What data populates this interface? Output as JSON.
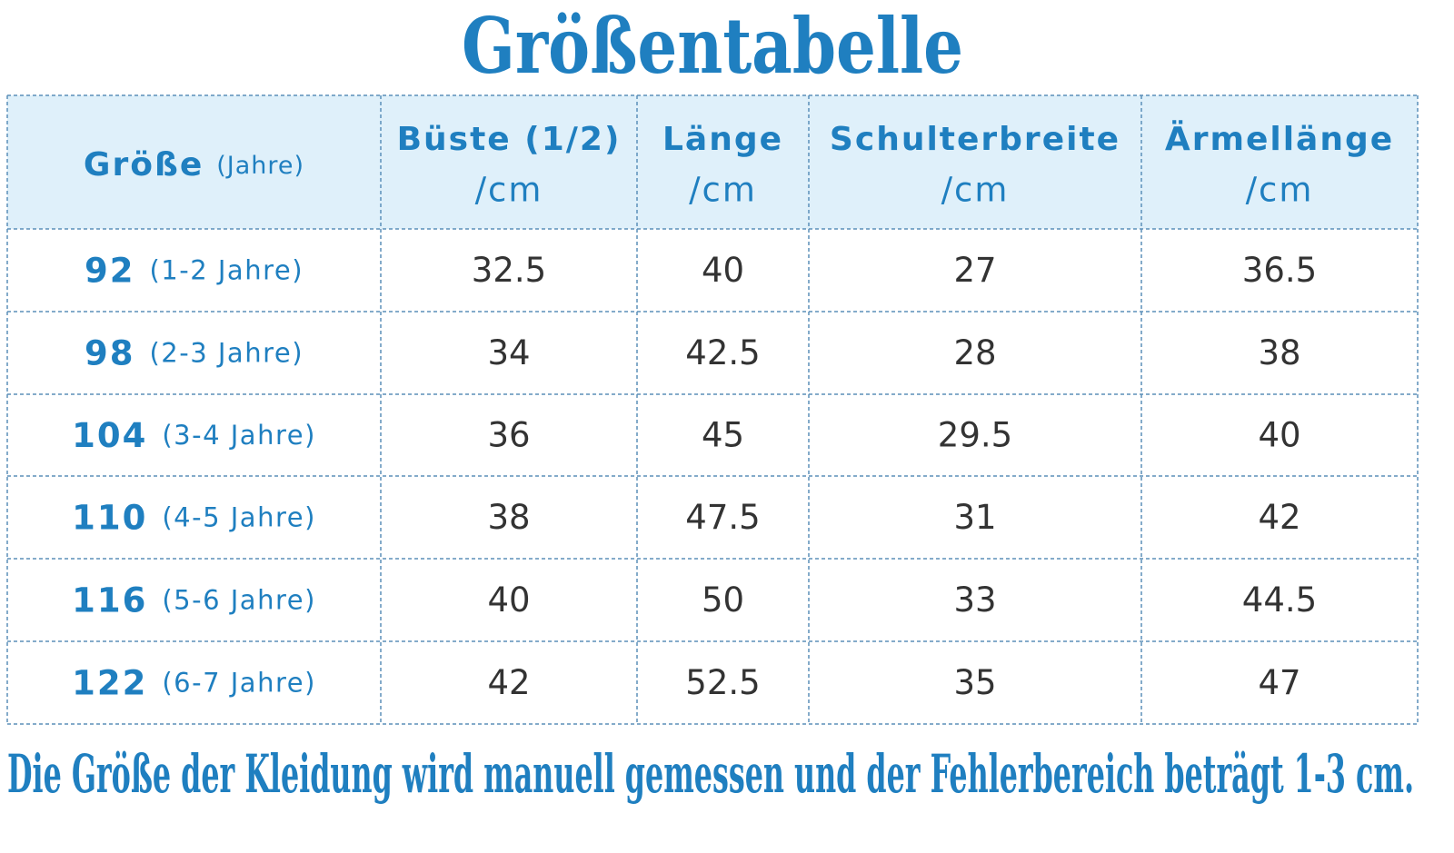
{
  "title": "Größentabelle",
  "table": {
    "header": [
      {
        "main": "Größe",
        "sub": "(Jahre)"
      },
      {
        "main": "Büste (1/2)",
        "sub": "/cm"
      },
      {
        "main": "Länge",
        "sub": "/cm"
      },
      {
        "main": "Schulterbreite",
        "sub": "/cm"
      },
      {
        "main": "Ärmellänge",
        "sub": "/cm"
      }
    ],
    "rows": [
      [
        {
          "size": 92,
          "age": "(1-2 Jahre)"
        },
        32.5,
        40,
        27,
        36.5
      ],
      [
        {
          "size": 98,
          "age": "(2-3 Jahre)"
        },
        34,
        42.5,
        28,
        38
      ],
      [
        {
          "size": 104,
          "age": "(3-4 Jahre)"
        },
        36,
        45,
        29.5,
        40
      ],
      [
        {
          "size": 110,
          "age": "(4-5 Jahre)"
        },
        38,
        47.5,
        31,
        42
      ],
      [
        {
          "size": 116,
          "age": "(5-6 Jahre)"
        },
        40,
        50,
        33,
        44.5
      ],
      [
        {
          "size": 122,
          "age": "(6-7 Jahre)"
        },
        42,
        52.5,
        35,
        47
      ]
    ]
  },
  "note": "Die Größe der Kleidung wird manuell gemessen und der Fehlerbereich beträgt 1-3 cm."
}
